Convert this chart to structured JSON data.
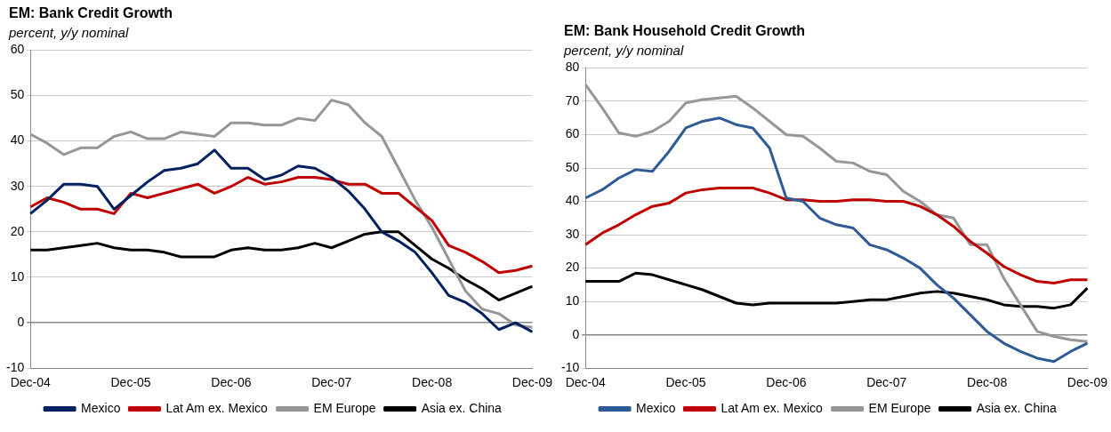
{
  "chart_data": [
    {
      "type": "line",
      "title": "EM: Bank Credit Growth",
      "subtitle": "percent, y/y nominal",
      "categories": [
        "Dec-04",
        null,
        null,
        null,
        null,
        null,
        "Dec-05",
        null,
        null,
        null,
        null,
        null,
        "Dec-06",
        null,
        null,
        null,
        null,
        null,
        "Dec-07",
        null,
        null,
        null,
        null,
        null,
        "Dec-08",
        null,
        null,
        null,
        null,
        null,
        "Dec-09"
      ],
      "series": [
        {
          "name": "Mexico",
          "color": "#002060",
          "values": [
            24,
            27,
            30.5,
            30.5,
            30,
            25,
            28,
            31,
            33.5,
            34,
            35,
            38,
            34,
            34,
            31.5,
            32.5,
            34.5,
            34,
            32,
            29,
            25,
            20,
            18,
            15.5,
            11,
            6,
            4.5,
            2,
            -1.5,
            0,
            -2
          ]
        },
        {
          "name": "Lat Am ex. Mexico",
          "color": "#c00000",
          "values": [
            25.5,
            27.5,
            26.5,
            25,
            25,
            24,
            28.5,
            27.5,
            28.5,
            29.5,
            30.5,
            28.5,
            30,
            32,
            30.5,
            31,
            32,
            32,
            31.5,
            30.5,
            30.5,
            28.5,
            28.5,
            25.5,
            22.5,
            17,
            15.5,
            13.5,
            11,
            11.5,
            12.5
          ]
        },
        {
          "name": "EM Europe",
          "color": "#969696",
          "values": [
            41.5,
            39.5,
            37,
            38.5,
            38.5,
            41,
            42,
            40.5,
            40.5,
            42,
            41.5,
            41,
            44,
            44,
            43.5,
            43.5,
            45,
            44.5,
            49,
            48,
            44,
            41,
            34,
            27,
            21,
            14,
            7,
            3,
            2,
            -0.5,
            -1
          ]
        },
        {
          "name": "Asia ex. China",
          "color": "#000000",
          "values": [
            16,
            16,
            16.5,
            17,
            17.5,
            16.5,
            16,
            16,
            15.5,
            14.5,
            14.5,
            14.5,
            16,
            16.5,
            16,
            16,
            16.5,
            17.5,
            16.5,
            18,
            19.5,
            20,
            20,
            17,
            14,
            12,
            9.5,
            7.5,
            5,
            6.5,
            8
          ]
        }
      ],
      "ylim": [
        -10,
        60
      ],
      "yticks": [
        -10,
        0,
        10,
        20,
        30,
        40,
        50,
        60
      ],
      "grid": "y",
      "legend": "bottom",
      "marker": "none",
      "line_style": "solid"
    },
    {
      "type": "line",
      "title": "EM: Bank Household Credit Growth",
      "subtitle": "percent, y/y nominal",
      "categories": [
        "Dec-04",
        null,
        null,
        null,
        null,
        null,
        "Dec-05",
        null,
        null,
        null,
        null,
        null,
        "Dec-06",
        null,
        null,
        null,
        null,
        null,
        "Dec-07",
        null,
        null,
        null,
        null,
        null,
        "Dec-08",
        null,
        null,
        null,
        null,
        null,
        "Dec-09"
      ],
      "series": [
        {
          "name": "Mexico",
          "color": "#2e5b98",
          "values": [
            41,
            43.5,
            47,
            49.5,
            49,
            55,
            62,
            64,
            65,
            63,
            62,
            56,
            41,
            40,
            35,
            33,
            32,
            27,
            25.5,
            23,
            20,
            15,
            11,
            6,
            1,
            -2.5,
            -5,
            -7,
            -8,
            -5,
            -2.5
          ]
        },
        {
          "name": "Lat Am ex. Mexico",
          "color": "#c00000",
          "values": [
            27,
            30.5,
            33,
            36,
            38.5,
            39.5,
            42.5,
            43.5,
            44,
            44,
            44,
            42.5,
            40.5,
            40.5,
            40,
            40,
            40.5,
            40.5,
            40,
            40,
            38.5,
            36,
            32.5,
            28,
            24.5,
            20.5,
            18,
            16,
            15.5,
            16.5,
            16.5
          ]
        },
        {
          "name": "EM Europe",
          "color": "#969696",
          "values": [
            75,
            68,
            60.5,
            59.5,
            61,
            64,
            69.5,
            70.5,
            71,
            71.5,
            68,
            64,
            60,
            59.5,
            56,
            52,
            51.5,
            49,
            48,
            43,
            40,
            36,
            35,
            27,
            27,
            17,
            9,
            1,
            -0.5,
            -1.5,
            -2
          ]
        },
        {
          "name": "Asia ex. China",
          "color": "#000000",
          "values": [
            16,
            16,
            16,
            18.5,
            18,
            16.5,
            15,
            13.5,
            11.5,
            9.5,
            9,
            9.5,
            9.5,
            9.5,
            9.5,
            9.5,
            10,
            10.5,
            10.5,
            11.5,
            12.5,
            13,
            12.5,
            11.5,
            10.5,
            9,
            8.5,
            8.5,
            8,
            9,
            14
          ]
        }
      ],
      "ylim": [
        -10,
        80
      ],
      "yticks": [
        -10,
        0,
        10,
        20,
        30,
        40,
        50,
        60,
        70,
        80
      ],
      "grid": "y",
      "legend": "bottom",
      "marker": "none",
      "line_style": "solid"
    }
  ]
}
